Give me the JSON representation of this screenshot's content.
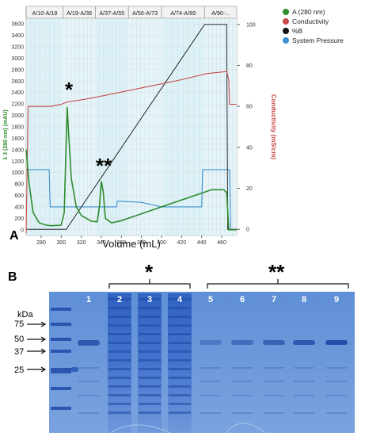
{
  "panel_a": {
    "letter": "A",
    "fraction_labels": [
      "A/10-A/18",
      "A/19-A/36",
      "A/37-A/55",
      "A/56-A/73",
      "A/74-A/89",
      "A/90-..."
    ],
    "x_axis_title": "Volume (mL)",
    "y_left_title": "λ 3 (280 nm) (mAU)",
    "y_right_title": "Conductivity (mS/cm)",
    "legend": [
      {
        "name": "A (280 nm)",
        "color": "#2e8b2e"
      },
      {
        "name": "Conductivity",
        "color": "#c84a4a"
      },
      {
        "name": "%B",
        "color": "#111111"
      },
      {
        "name": "System Pressure",
        "color": "#3c8fd0"
      }
    ],
    "peak_marks": [
      "*",
      "**"
    ],
    "chart_data": {
      "type": "line",
      "x_ticks": [
        280,
        300,
        320,
        340,
        360,
        380,
        400,
        420,
        440,
        460
      ],
      "y_left_ticks": [
        0,
        200,
        400,
        600,
        800,
        1000,
        1200,
        1400,
        1600,
        1800,
        2000,
        2200,
        2400,
        2600,
        2800,
        3000,
        3200,
        3400,
        3600
      ],
      "y_right_ticks": [
        0,
        20,
        40,
        60,
        80,
        100
      ],
      "xlim": [
        265,
        475
      ],
      "ylim_left": [
        -100,
        3700
      ],
      "ylim_right": [
        -3,
        103
      ],
      "series": [
        {
          "name": "A (280 nm)",
          "axis": "left",
          "points": [
            [
              265,
              1400
            ],
            [
              268,
              800
            ],
            [
              272,
              300
            ],
            [
              278,
              120
            ],
            [
              285,
              80
            ],
            [
              290,
              70
            ],
            [
              300,
              80
            ],
            [
              303,
              300
            ],
            [
              305,
              1600
            ],
            [
              306,
              2150
            ],
            [
              307,
              1800
            ],
            [
              310,
              900
            ],
            [
              315,
              400
            ],
            [
              320,
              250
            ],
            [
              330,
              150
            ],
            [
              336,
              140
            ],
            [
              338,
              400
            ],
            [
              340,
              850
            ],
            [
              342,
              650
            ],
            [
              344,
              200
            ],
            [
              350,
              120
            ],
            [
              360,
              160
            ],
            [
              380,
              280
            ],
            [
              400,
              400
            ],
            [
              420,
              520
            ],
            [
              440,
              640
            ],
            [
              450,
              700
            ],
            [
              462,
              700
            ],
            [
              465,
              650
            ],
            [
              467,
              0
            ],
            [
              475,
              0
            ]
          ]
        },
        {
          "name": "Conductivity",
          "axis": "right",
          "points": [
            [
              265,
              -2
            ],
            [
              267,
              60
            ],
            [
              290,
              60
            ],
            [
              300,
              61
            ],
            [
              305,
              62
            ],
            [
              330,
              64
            ],
            [
              360,
              67
            ],
            [
              390,
              70
            ],
            [
              420,
              73
            ],
            [
              445,
              76
            ],
            [
              465,
              77
            ],
            [
              467,
              73
            ],
            [
              468,
              61
            ],
            [
              475,
              61
            ]
          ]
        },
        {
          "name": "%B",
          "axis": "right",
          "points": [
            [
              265,
              0
            ],
            [
              305,
              0
            ],
            [
              443,
              100
            ],
            [
              465,
              100
            ],
            [
              466,
              0
            ],
            [
              475,
              0
            ]
          ]
        },
        {
          "name": "System Pressure",
          "axis": "left",
          "points": [
            [
              265,
              1050
            ],
            [
              288,
              1050
            ],
            [
              289,
              400
            ],
            [
              355,
              400
            ],
            [
              356,
              500
            ],
            [
              380,
              480
            ],
            [
              400,
              400
            ],
            [
              440,
              400
            ],
            [
              441,
              1050
            ],
            [
              468,
              1050
            ],
            [
              469,
              0
            ],
            [
              475,
              0
            ]
          ]
        }
      ]
    }
  },
  "panel_b": {
    "letter": "B",
    "kda_title": "kDa",
    "marker_values": [
      75,
      50,
      37,
      25
    ],
    "lane_labels": [
      "1",
      "2",
      "3",
      "4",
      "5",
      "6",
      "7",
      "8",
      "9"
    ],
    "group_marks": [
      "*",
      "**"
    ]
  }
}
